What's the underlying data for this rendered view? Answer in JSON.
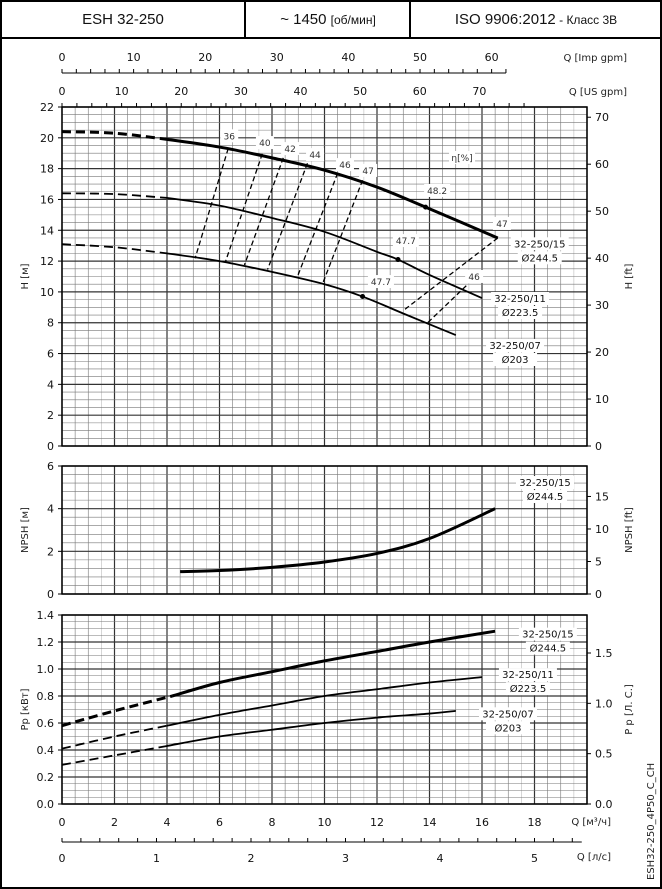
{
  "header": {
    "model": "ESH 32-250",
    "speed": "~ 1450",
    "speed_unit": "[об/мин]",
    "standard": "ISO 9906:2012",
    "class": " - Класс 3В"
  },
  "side_code": "ESH32-250_4P50_C_CH",
  "chart_data": {
    "type": "line",
    "x_axes": {
      "imp_gpm": {
        "label": "Q [Imp gpm]",
        "ticks": [
          "0",
          "10",
          "20",
          "30",
          "40",
          "50",
          "60"
        ]
      },
      "us_gpm": {
        "label": "Q [US gpm]",
        "ticks": [
          "0",
          "10",
          "20",
          "30",
          "40",
          "50",
          "60",
          "70"
        ]
      },
      "m3h": {
        "label": "Q [м³/ч]",
        "ticks": [
          "0",
          "2",
          "4",
          "6",
          "8",
          "10",
          "12",
          "14",
          "16",
          "18"
        ],
        "range": [
          0,
          20
        ]
      },
      "ls": {
        "label": "Q [л/с]",
        "ticks": [
          "0",
          "1",
          "2",
          "3",
          "4",
          "5"
        ]
      }
    },
    "grid": true,
    "panels": [
      {
        "id": "head",
        "ylabel": "H [м]",
        "ylim": [
          0,
          22
        ],
        "yticks": [
          "0",
          "2",
          "4",
          "6",
          "8",
          "10",
          "12",
          "14",
          "16",
          "18",
          "20",
          "22"
        ],
        "y2label": "H [ft]",
        "y2ticks": [
          "0",
          "10",
          "20",
          "30",
          "40",
          "50",
          "60",
          "70"
        ],
        "efficiency_label": {
          "text": "η[%]",
          "q": 15.24,
          "v": 18.69
        },
        "series": [
          {
            "name": "32-250/15",
            "diameter": "Ø244.5",
            "bold": true,
            "dashed_until": 4,
            "points": [
              [
                0,
                20.4
              ],
              [
                2,
                20.3
              ],
              [
                4,
                19.9
              ],
              [
                6,
                19.4
              ],
              [
                8,
                18.7
              ],
              [
                10,
                17.9
              ],
              [
                12,
                16.8
              ],
              [
                13.85,
                15.5
              ],
              [
                16.6,
                13.5
              ]
            ],
            "label_at": [
              18.2,
              12.7
            ]
          },
          {
            "name": "32-250/11",
            "diameter": "Ø223.5",
            "bold": false,
            "dashed_until": 4,
            "points": [
              [
                0,
                16.4
              ],
              [
                2,
                16.35
              ],
              [
                4,
                16.1
              ],
              [
                6,
                15.6
              ],
              [
                8,
                14.8
              ],
              [
                10,
                13.9
              ],
              [
                12,
                12.6
              ],
              [
                12.8,
                12.1
              ],
              [
                14,
                11.1
              ],
              [
                16,
                9.6
              ]
            ],
            "label_at": [
              17.45,
              9.15
            ]
          },
          {
            "name": "32-250/07",
            "diameter": "Ø203",
            "bold": false,
            "dashed_until": 4,
            "points": [
              [
                0,
                13.1
              ],
              [
                2,
                12.9
              ],
              [
                4,
                12.5
              ],
              [
                6,
                12.0
              ],
              [
                8,
                11.3
              ],
              [
                10,
                10.5
              ],
              [
                11.45,
                9.7
              ],
              [
                13,
                8.6
              ],
              [
                15,
                7.2
              ]
            ],
            "label_at": [
              17.26,
              6.1
            ]
          }
        ],
        "best_points": [
          [
            13.85,
            15.5
          ],
          [
            12.8,
            12.1
          ],
          [
            11.45,
            9.7
          ]
        ],
        "iso_efficiency": [
          {
            "value": "36",
            "line": [
              [
                6.33,
                19.3
              ],
              [
                5.07,
                12.18
              ]
            ],
            "label_at": [
              6.37,
              20.1
            ]
          },
          {
            "value": "40",
            "line": [
              [
                7.63,
                18.96
              ],
              [
                6.22,
                11.93
              ]
            ],
            "label_at": [
              7.73,
              19.66
            ]
          },
          {
            "value": "42",
            "line": [
              [
                8.43,
                18.7
              ],
              [
                6.95,
                11.75
              ]
            ],
            "label_at": [
              8.69,
              19.27
            ]
          },
          {
            "value": "44",
            "line": [
              [
                9.35,
                18.35
              ],
              [
                7.83,
                11.45
              ]
            ],
            "label_at": [
              9.64,
              18.88
            ]
          },
          {
            "value": "46",
            "line": [
              [
                10.5,
                17.7
              ],
              [
                8.97,
                11.0
              ]
            ],
            "label_at": [
              10.78,
              18.23
            ]
          },
          {
            "value": "47",
            "line": [
              [
                11.45,
                17.25
              ],
              [
                9.92,
                10.5
              ]
            ],
            "label_at": [
              11.66,
              17.85
            ]
          },
          {
            "value": "47",
            "line": [
              [
                16.6,
                13.5
              ],
              [
                13.05,
                8.85
              ]
            ],
            "label_at": [
              16.76,
              14.41
            ]
          },
          {
            "value": "46",
            "line": [
              [
                15.4,
                10.4
              ],
              [
                13.93,
                8.0
              ]
            ],
            "label_at": [
              15.7,
              10.97
            ]
          }
        ],
        "point_labels": [
          {
            "value": "48.2",
            "label_at": [
              14.29,
              16.55
            ]
          },
          {
            "value": "47.7",
            "label_at": [
              13.1,
              13.3
            ]
          },
          {
            "value": "47.7",
            "label_at": [
              12.15,
              10.64
            ]
          }
        ]
      },
      {
        "id": "npsh",
        "ylabel": "NPSH [м]",
        "ylim": [
          0,
          6
        ],
        "yticks": [
          "0",
          "2",
          "4",
          "6"
        ],
        "y2label": "NPSH [ft]",
        "y2ticks": [
          "0",
          "5",
          "10",
          "15"
        ],
        "series": [
          {
            "name": "32-250/15",
            "diameter": "Ø244.5",
            "bold": true,
            "dashed_until": null,
            "points": [
              [
                4.5,
                1.05
              ],
              [
                6,
                1.1
              ],
              [
                8,
                1.25
              ],
              [
                10,
                1.5
              ],
              [
                12,
                1.9
              ],
              [
                14,
                2.6
              ],
              [
                16.5,
                4.0
              ]
            ],
            "label_at": [
              18.4,
              4.92
            ]
          }
        ]
      },
      {
        "id": "power",
        "ylabel": "Pp [кВт]",
        "ylim": [
          0,
          1.4
        ],
        "yticks": [
          "0.0",
          "0.2",
          "0.4",
          "0.6",
          "0.8",
          "1.0",
          "1.2",
          "1.4"
        ],
        "y2label": "P p [Л. С.]",
        "y2ticks": [
          "0.0",
          "0.5",
          "1.0",
          "1.5"
        ],
        "series": [
          {
            "name": "32-250/15",
            "diameter": "Ø244.5",
            "bold": true,
            "dashed_until": 4.2,
            "points": [
              [
                0,
                0.58
              ],
              [
                2,
                0.69
              ],
              [
                4.2,
                0.8
              ],
              [
                6,
                0.9
              ],
              [
                8,
                0.98
              ],
              [
                10,
                1.06
              ],
              [
                12,
                1.13
              ],
              [
                14,
                1.2
              ],
              [
                16.5,
                1.28
              ]
            ],
            "label_at": [
              18.51,
              1.21
            ]
          },
          {
            "name": "32-250/11",
            "diameter": "Ø223.5",
            "bold": false,
            "dashed_until": 4,
            "points": [
              [
                0,
                0.41
              ],
              [
                2,
                0.5
              ],
              [
                4,
                0.58
              ],
              [
                6,
                0.66
              ],
              [
                8,
                0.73
              ],
              [
                10,
                0.8
              ],
              [
                12,
                0.85
              ],
              [
                14,
                0.9
              ],
              [
                16,
                0.94
              ]
            ],
            "label_at": [
              17.75,
              0.91
            ]
          },
          {
            "name": "32-250/07",
            "diameter": "Ø203",
            "bold": false,
            "dashed_until": 4,
            "points": [
              [
                0,
                0.29
              ],
              [
                2,
                0.36
              ],
              [
                4,
                0.43
              ],
              [
                6,
                0.5
              ],
              [
                8,
                0.55
              ],
              [
                10,
                0.6
              ],
              [
                12,
                0.64
              ],
              [
                14,
                0.67
              ],
              [
                15,
                0.69
              ]
            ],
            "label_at": [
              16.99,
              0.62
            ]
          }
        ]
      }
    ]
  }
}
